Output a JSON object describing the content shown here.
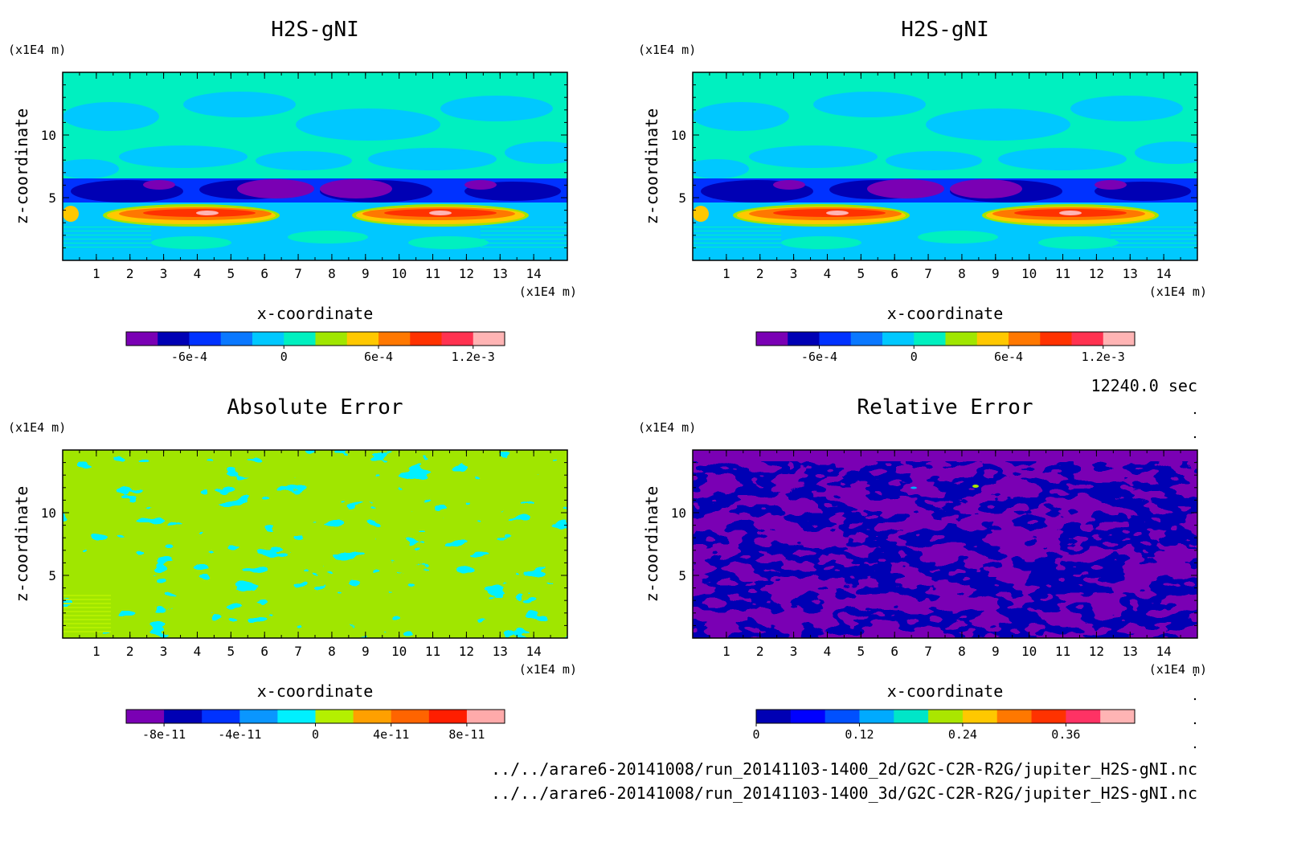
{
  "time_label": "12240.0 sec",
  "files": [
    "../../arare6-20141008/run_20141103-1400_2d/G2C-C2R-R2G/jupiter_H2S-gNI.nc",
    "../../arare6-20141008/run_20141103-1400_3d/G2C-C2R-R2G/jupiter_H2S-gNI.nc"
  ],
  "chart_data": [
    {
      "type": "heatmap",
      "title": "H2S-gNI",
      "xlabel": "x-coordinate",
      "ylabel": "z-coordinate",
      "x_unit": "(x1E4 m)",
      "y_unit": "(x1E4 m)",
      "xlim": [
        0,
        15
      ],
      "ylim": [
        0,
        15
      ],
      "x_ticks": [
        "1",
        "2",
        "3",
        "4",
        "5",
        "6",
        "7",
        "8",
        "9",
        "10",
        "11",
        "12",
        "13",
        "14"
      ],
      "y_ticks": [
        "5",
        "10"
      ],
      "colorbar": {
        "colors": [
          "#7a00b4",
          "#0000b4",
          "#0032ff",
          "#0a78ff",
          "#00c8ff",
          "#00f0c0",
          "#a0e600",
          "#ffc800",
          "#ff7800",
          "#ff3200",
          "#ff3250",
          "#ffb4b4"
        ],
        "labels": [
          "-6e-4",
          "0",
          "6e-4",
          "1.2e-3"
        ]
      }
    },
    {
      "type": "heatmap",
      "title": "H2S-gNI",
      "xlabel": "x-coordinate",
      "ylabel": "z-coordinate",
      "x_unit": "(x1E4 m)",
      "y_unit": "(x1E4 m)",
      "xlim": [
        0,
        15
      ],
      "ylim": [
        0,
        15
      ],
      "x_ticks": [
        "1",
        "2",
        "3",
        "4",
        "5",
        "6",
        "7",
        "8",
        "9",
        "10",
        "11",
        "12",
        "13",
        "14"
      ],
      "y_ticks": [
        "5",
        "10"
      ],
      "colorbar": {
        "colors": [
          "#7a00b4",
          "#0000b4",
          "#0032ff",
          "#0a78ff",
          "#00c8ff",
          "#00f0c0",
          "#a0e600",
          "#ffc800",
          "#ff7800",
          "#ff3200",
          "#ff3250",
          "#ffb4b4"
        ],
        "labels": [
          "-6e-4",
          "0",
          "6e-4",
          "1.2e-3"
        ]
      }
    },
    {
      "type": "heatmap",
      "title": "Absolute Error",
      "xlabel": "x-coordinate",
      "ylabel": "z-coordinate",
      "x_unit": "(x1E4 m)",
      "y_unit": "(x1E4 m)",
      "xlim": [
        0,
        15
      ],
      "ylim": [
        0,
        15
      ],
      "x_ticks": [
        "1",
        "2",
        "3",
        "4",
        "5",
        "6",
        "7",
        "8",
        "9",
        "10",
        "11",
        "12",
        "13",
        "14"
      ],
      "y_ticks": [
        "5",
        "10"
      ],
      "colorbar": {
        "colors": [
          "#7a00b4",
          "#0000b4",
          "#0032ff",
          "#0a96ff",
          "#00f0ff",
          "#b4f000",
          "#ffa000",
          "#ff6400",
          "#ff1e00",
          "#ffaaaa"
        ],
        "labels": [
          "-8e-11",
          "-4e-11",
          "0",
          "4e-11",
          "8e-11"
        ]
      }
    },
    {
      "type": "heatmap",
      "title": "Relative Error",
      "xlabel": "x-coordinate",
      "ylabel": "z-coordinate",
      "x_unit": "(x1E4 m)",
      "y_unit": "(x1E4 m)",
      "xlim": [
        0,
        15
      ],
      "ylim": [
        0,
        15
      ],
      "x_ticks": [
        "1",
        "2",
        "3",
        "4",
        "5",
        "6",
        "7",
        "8",
        "9",
        "10",
        "11",
        "12",
        "13",
        "14"
      ],
      "y_ticks": [
        "5",
        "10"
      ],
      "colorbar": {
        "colors": [
          "#0000b4",
          "#0000ff",
          "#0050ff",
          "#00aaff",
          "#00e6c8",
          "#aae600",
          "#ffc800",
          "#ff7800",
          "#ff3200",
          "#ff3264",
          "#ffb4b4"
        ],
        "labels": [
          "0",
          "0.12",
          "0.24",
          "0.36"
        ]
      }
    }
  ]
}
